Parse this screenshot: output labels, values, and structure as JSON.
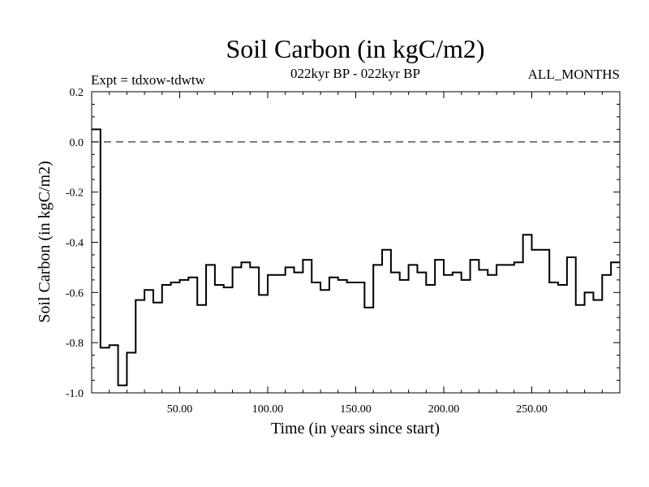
{
  "chart_data": {
    "type": "line",
    "step": true,
    "title": "Soil Carbon (in kgC/m2)",
    "expt_label": "Expt = tdxow-tdwtw",
    "period_label": "022kyr BP - 022kyr BP",
    "months_label": "ALL_MONTHS",
    "xlabel": "Time (in years since start)",
    "ylabel": "Soil Carbon (in kgC/m2)",
    "xlim": [
      0,
      300
    ],
    "ylim": [
      -1.0,
      0.2
    ],
    "x_ticks": [
      50,
      100,
      150,
      200,
      250
    ],
    "x_tick_labels": [
      "50.00",
      "100.00",
      "150.00",
      "200.00",
      "250.00"
    ],
    "y_ticks": [
      0.2,
      0.0,
      -0.2,
      -0.4,
      -0.6,
      -0.8,
      -1.0
    ],
    "y_tick_labels": [
      "0.2",
      "0.0",
      "-0.2",
      "-0.4",
      "-0.6",
      "-0.8",
      "-1.0"
    ],
    "reference_line": {
      "y": 0.0,
      "style": "dashed"
    },
    "series": [
      {
        "step_width": 5,
        "x": [
          0,
          5,
          10,
          15,
          20,
          25,
          30,
          35,
          40,
          45,
          50,
          55,
          60,
          65,
          70,
          75,
          80,
          85,
          90,
          95,
          100,
          105,
          110,
          115,
          120,
          125,
          130,
          135,
          140,
          145,
          150,
          155,
          160,
          165,
          170,
          175,
          180,
          185,
          190,
          195,
          200,
          205,
          210,
          215,
          220,
          225,
          230,
          235,
          240,
          245,
          250,
          255,
          260,
          265,
          270,
          275,
          280,
          285,
          290,
          295
        ],
        "values": [
          0.05,
          -0.82,
          -0.81,
          -0.97,
          -0.84,
          -0.63,
          -0.59,
          -0.64,
          -0.57,
          -0.56,
          -0.55,
          -0.54,
          -0.65,
          -0.49,
          -0.57,
          -0.58,
          -0.5,
          -0.48,
          -0.5,
          -0.61,
          -0.53,
          -0.53,
          -0.5,
          -0.52,
          -0.47,
          -0.56,
          -0.59,
          -0.54,
          -0.55,
          -0.56,
          -0.56,
          -0.66,
          -0.49,
          -0.43,
          -0.52,
          -0.55,
          -0.49,
          -0.52,
          -0.57,
          -0.47,
          -0.53,
          -0.52,
          -0.55,
          -0.47,
          -0.51,
          -0.53,
          -0.49,
          -0.49,
          -0.48,
          -0.37,
          -0.43,
          -0.43,
          -0.56,
          -0.57,
          -0.46,
          -0.65,
          -0.6,
          -0.63,
          -0.53,
          -0.48
        ]
      }
    ]
  }
}
